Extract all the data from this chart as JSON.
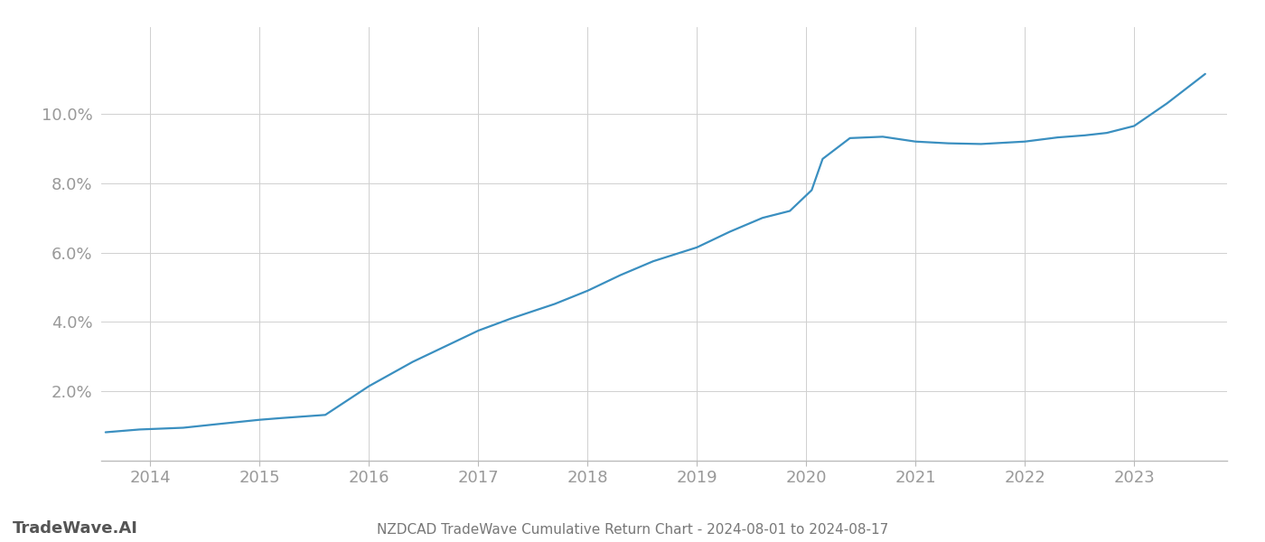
{
  "title": "NZDCAD TradeWave Cumulative Return Chart - 2024-08-01 to 2024-08-17",
  "watermark": "TradeWave.AI",
  "line_color": "#3a8fc0",
  "background_color": "#ffffff",
  "grid_color": "#d0d0d0",
  "x_years": [
    2014,
    2015,
    2016,
    2017,
    2018,
    2019,
    2020,
    2021,
    2022,
    2023
  ],
  "x_data": [
    2013.59,
    2013.9,
    2014.3,
    2014.6,
    2015.0,
    2015.2,
    2015.6,
    2016.0,
    2016.4,
    2016.7,
    2017.0,
    2017.3,
    2017.7,
    2018.0,
    2018.3,
    2018.6,
    2019.0,
    2019.3,
    2019.6,
    2019.85,
    2020.05,
    2020.15,
    2020.4,
    2020.7,
    2021.0,
    2021.3,
    2021.6,
    2022.0,
    2022.3,
    2022.55,
    2022.75,
    2023.0,
    2023.3,
    2023.65
  ],
  "y_data": [
    0.0082,
    0.009,
    0.0095,
    0.0105,
    0.0118,
    0.0123,
    0.0132,
    0.0215,
    0.0285,
    0.033,
    0.0375,
    0.041,
    0.0452,
    0.049,
    0.0535,
    0.0575,
    0.0615,
    0.066,
    0.07,
    0.072,
    0.078,
    0.087,
    0.093,
    0.0934,
    0.092,
    0.0915,
    0.0913,
    0.092,
    0.0932,
    0.0938,
    0.0945,
    0.0965,
    0.103,
    0.1115
  ],
  "ylim": [
    0,
    0.125
  ],
  "xlim": [
    2013.55,
    2023.85
  ],
  "yticks": [
    0.02,
    0.04,
    0.06,
    0.08,
    0.1
  ],
  "ytick_labels": [
    "2.0%",
    "4.0%",
    "6.0%",
    "8.0%",
    "10.0%"
  ],
  "title_fontsize": 11,
  "tick_fontsize": 13,
  "watermark_fontsize": 13,
  "line_width": 1.6
}
